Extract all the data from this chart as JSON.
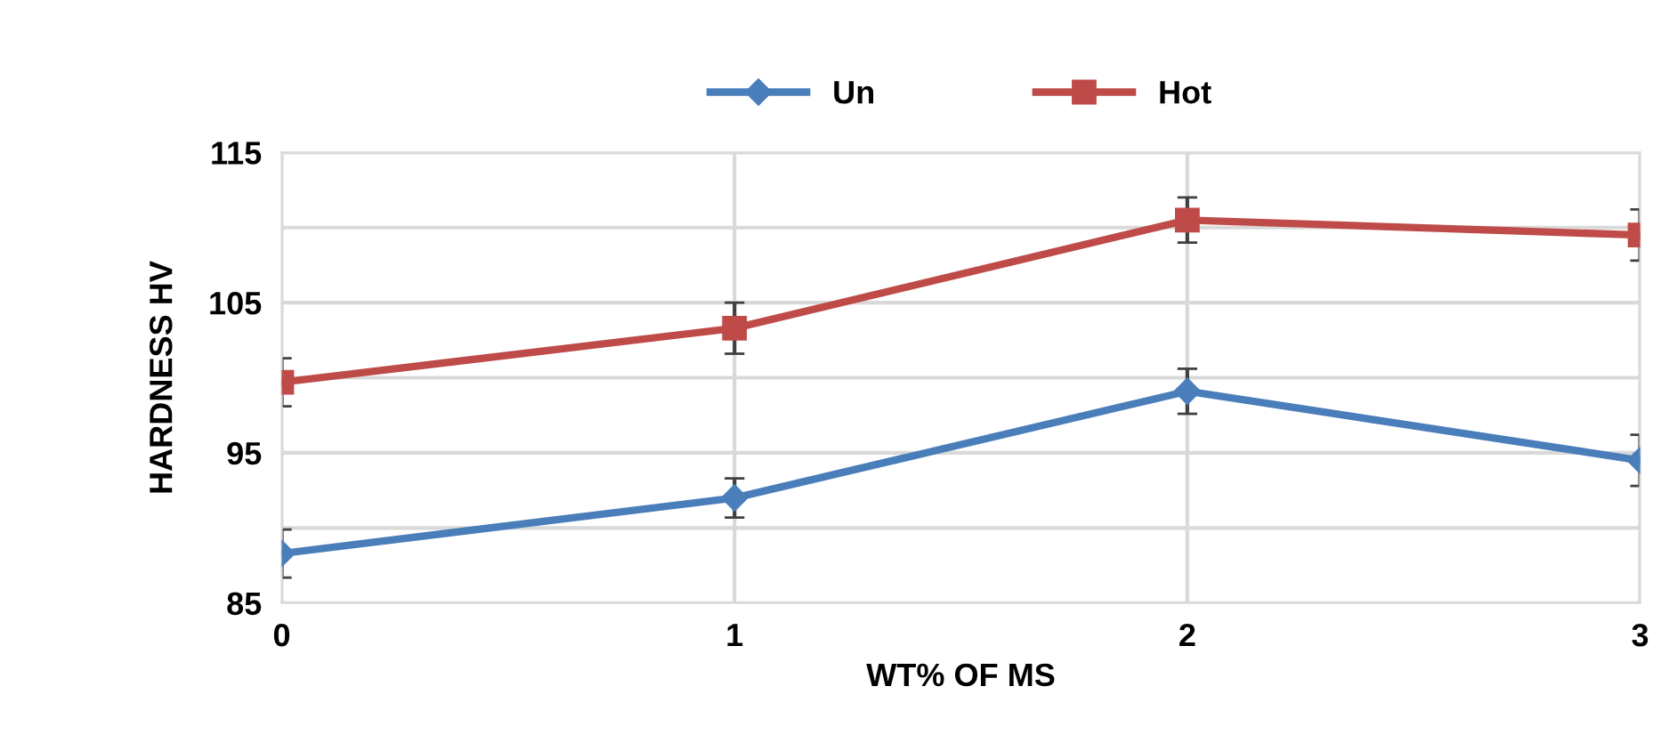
{
  "chart_data": {
    "type": "line",
    "xlabel": "WT% OF MS",
    "ylabel": "HARDNESS HV",
    "x": [
      0,
      1,
      2,
      3
    ],
    "series": [
      {
        "name": "Un",
        "color": "#4a7ebb",
        "marker": "diamond",
        "values": [
          88.3,
          92.0,
          99.1,
          94.5
        ],
        "errors": [
          1.6,
          1.3,
          1.5,
          1.7
        ]
      },
      {
        "name": "Hot",
        "color": "#be4b48",
        "marker": "square",
        "values": [
          99.7,
          103.3,
          110.5,
          109.5
        ],
        "errors": [
          1.6,
          1.7,
          1.5,
          1.7
        ]
      }
    ],
    "xlim": [
      0,
      3
    ],
    "xticks": [
      0,
      1,
      2,
      3
    ],
    "ylim": [
      85,
      115
    ],
    "yticks": [
      {
        "value": 85,
        "label": "85"
      },
      {
        "value": 90,
        "label": null
      },
      {
        "value": 95,
        "label": "95"
      },
      {
        "value": 100,
        "label": null
      },
      {
        "value": 105,
        "label": "105"
      },
      {
        "value": 110,
        "label": null
      },
      {
        "value": 115,
        "label": "115"
      }
    ],
    "grid": true,
    "legend": "top",
    "line_style": "solid"
  }
}
